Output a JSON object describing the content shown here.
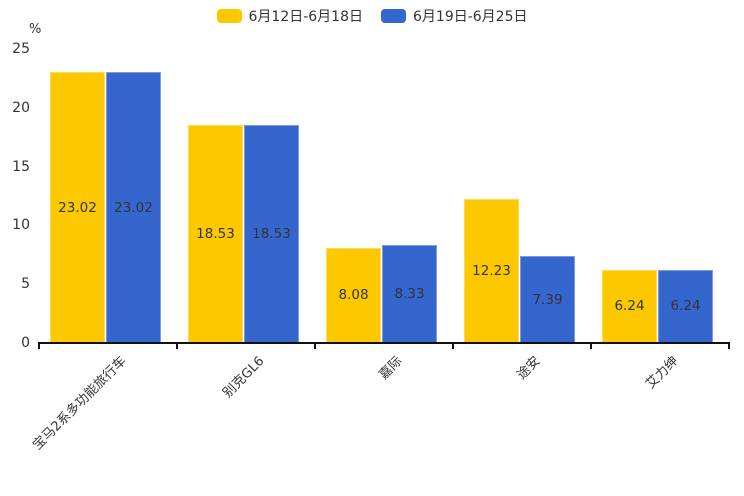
{
  "legend": {
    "position": "top"
  },
  "y_axis": {
    "unit": "%",
    "ticks": [
      0,
      5,
      10,
      15,
      20,
      25
    ]
  },
  "colors": {
    "series_1": "#FCC800",
    "series_2": "#3566CE",
    "axis": "#111111",
    "text": "#333333"
  },
  "chart_data": {
    "type": "bar",
    "title": "",
    "xlabel": "",
    "ylabel": "%",
    "ylim": [
      0,
      25
    ],
    "grid": false,
    "legend_position": "top",
    "value_labels": true,
    "categories": [
      "宝马2系多功能旅行车",
      "别克GL6",
      "嘉际",
      "途安",
      "艾力绅"
    ],
    "series": [
      {
        "name": "6月12日-6月18日",
        "color": "#FCC800",
        "values": [
          23.02,
          18.53,
          8.08,
          12.23,
          6.24
        ]
      },
      {
        "name": "6月19日-6月25日",
        "color": "#3566CE",
        "values": [
          23.02,
          18.53,
          8.33,
          7.39,
          6.24
        ]
      }
    ]
  }
}
